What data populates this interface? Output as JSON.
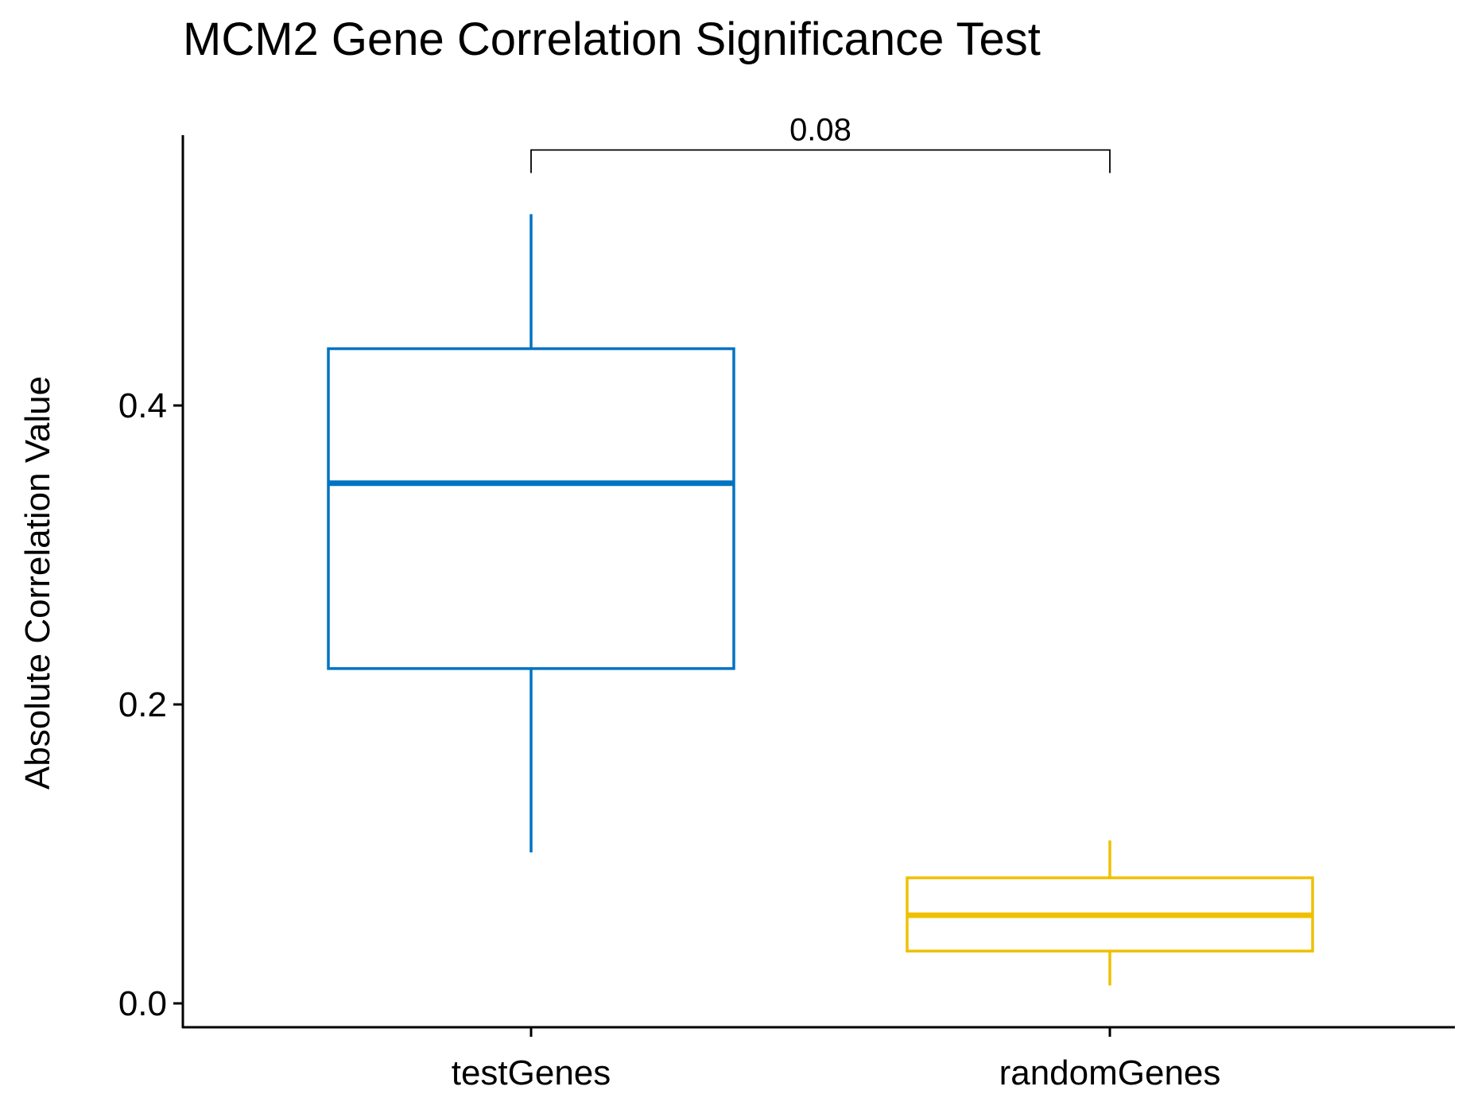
{
  "chart_data": {
    "type": "boxplot",
    "title": "MCM2 Gene Correlation Significance Test",
    "xlabel": "",
    "ylabel": "Absolute Correlation Value",
    "ylim": [
      -0.015,
      0.58
    ],
    "yticks": [
      "0.0",
      "0.2",
      "0.4"
    ],
    "ytick_values": [
      0.0,
      0.2,
      0.4
    ],
    "grid": false,
    "legend": "none",
    "categories": [
      "testGenes",
      "randomGenes"
    ],
    "series": [
      {
        "category": "testGenes",
        "color": "#0073C2",
        "whisker_low": 0.101,
        "q1": 0.224,
        "median": 0.348,
        "q3": 0.438,
        "whisker_high": 0.528
      },
      {
        "category": "randomGenes",
        "color": "#EFC000",
        "whisker_low": 0.012,
        "q1": 0.035,
        "median": 0.059,
        "q3": 0.084,
        "whisker_high": 0.109
      }
    ],
    "annotations": [
      {
        "type": "bracket",
        "from": "testGenes",
        "to": "randomGenes",
        "label": "0.08",
        "y": 0.555
      }
    ]
  }
}
